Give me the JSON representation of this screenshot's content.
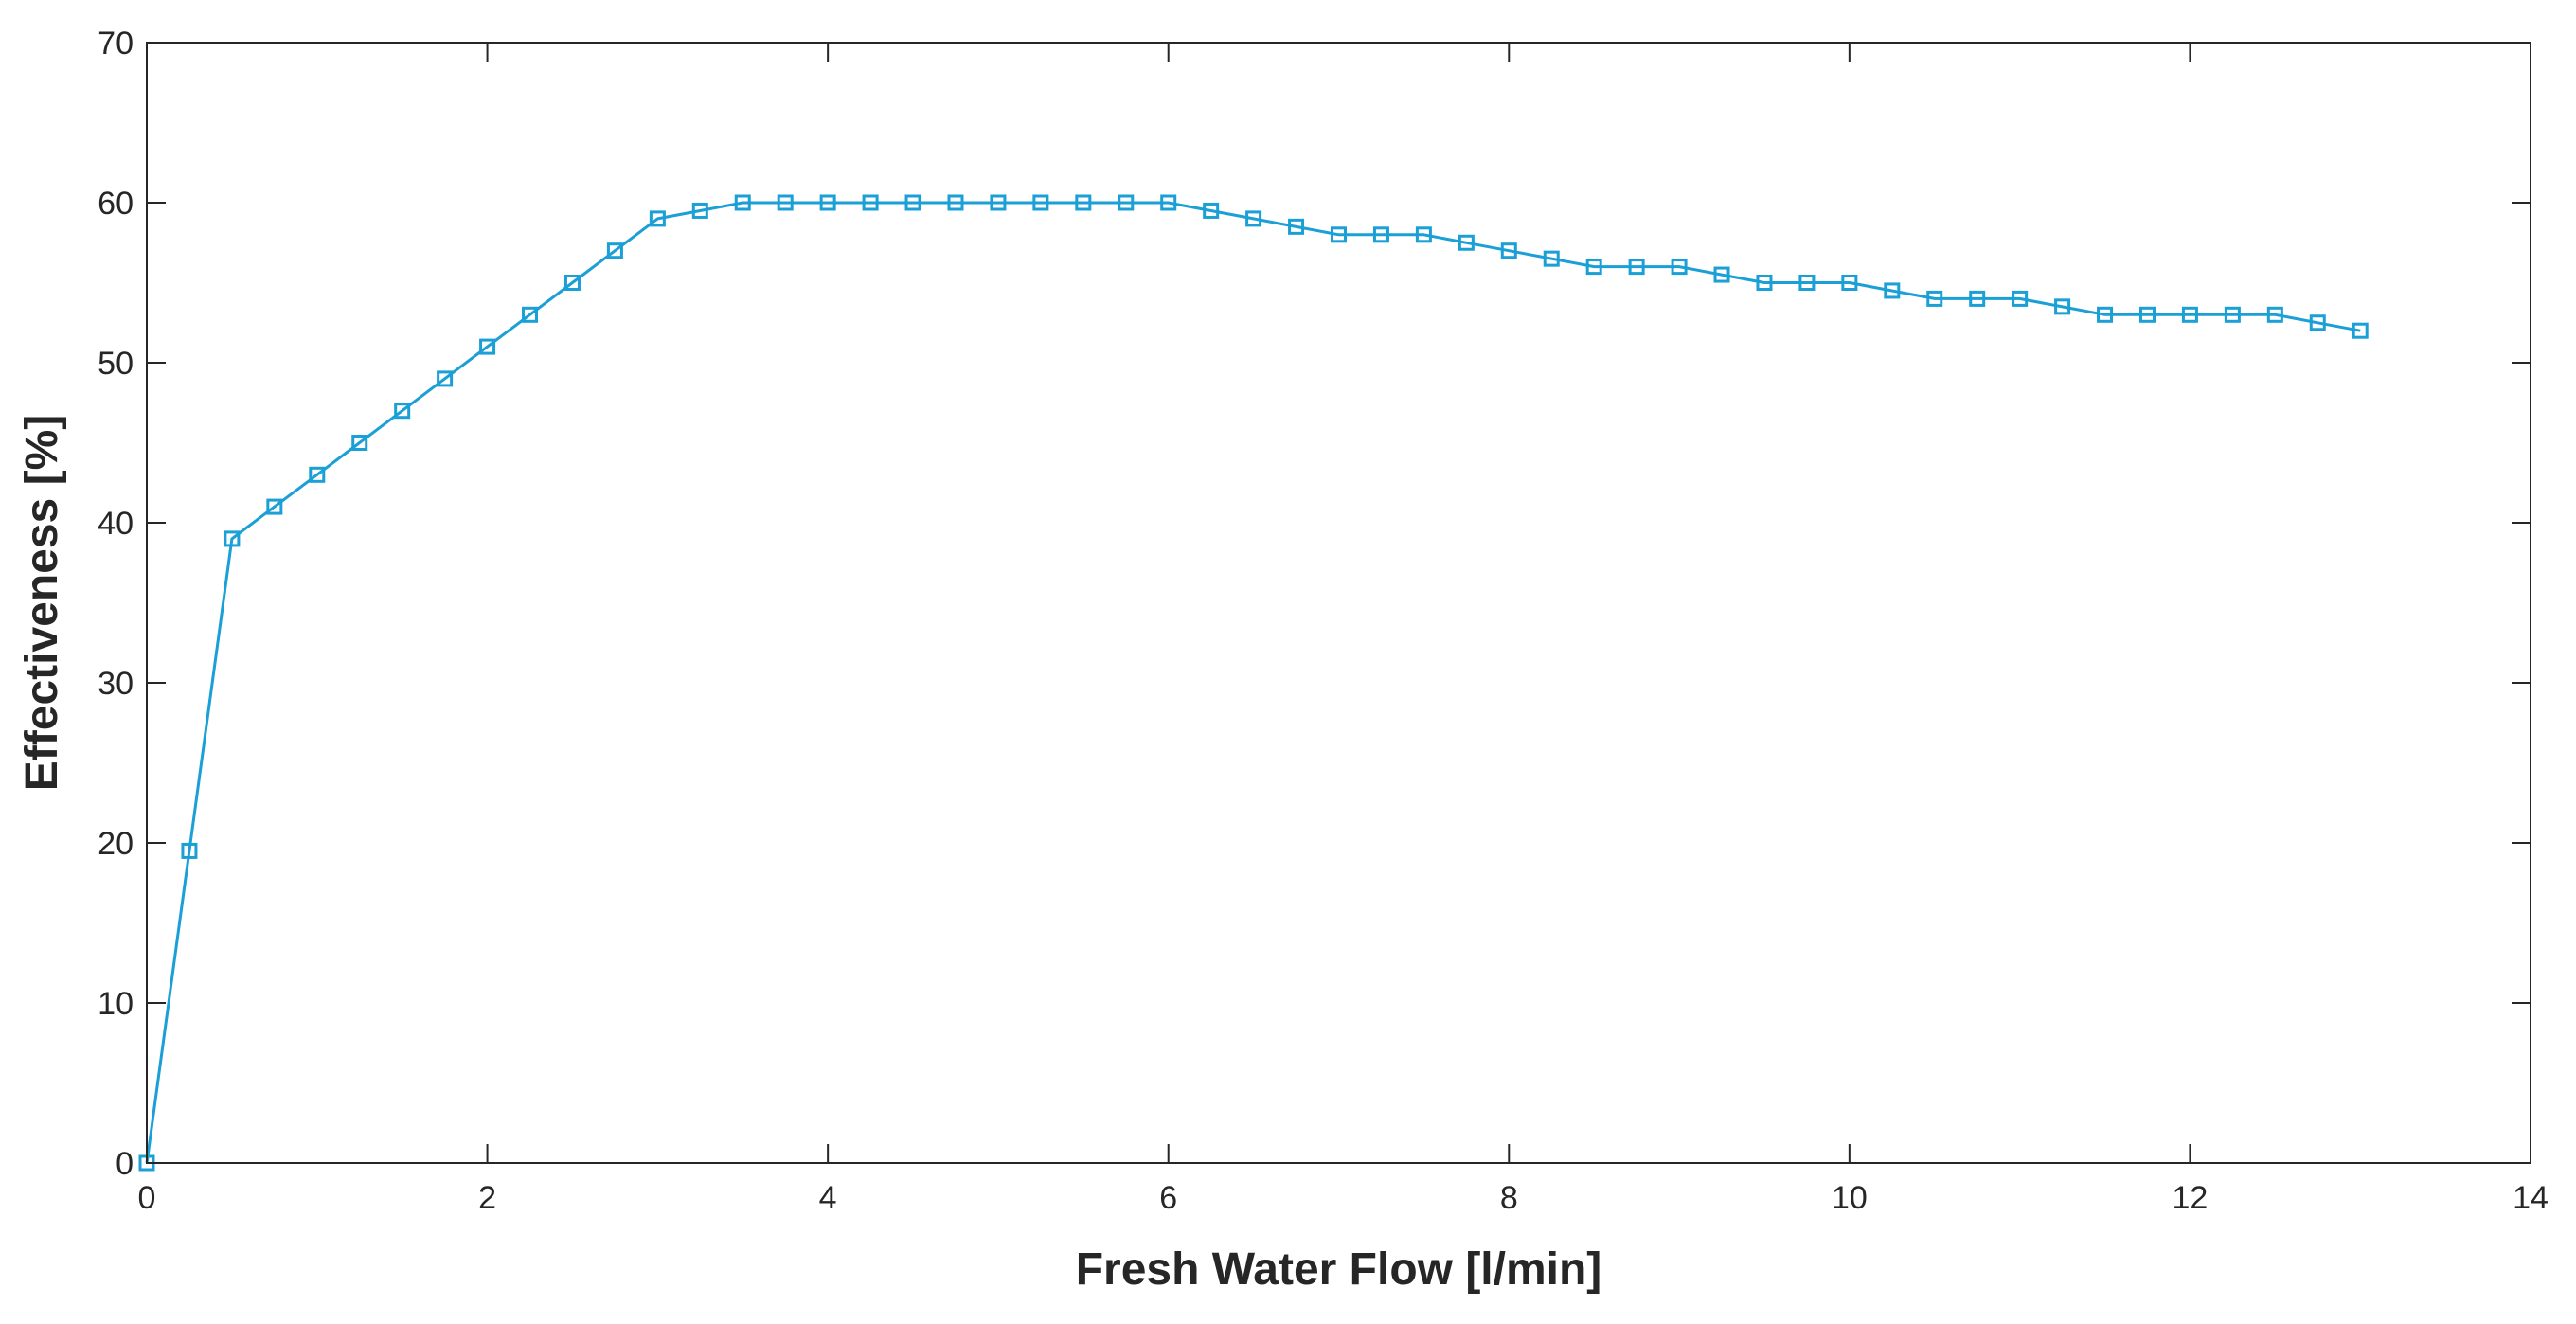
{
  "chart_data": {
    "type": "line",
    "title": "",
    "xlabel": "Fresh Water Flow [l/min]",
    "ylabel": "Effectiveness [%]",
    "xlim": [
      0,
      14
    ],
    "ylim": [
      0,
      70
    ],
    "xticks": [
      0,
      2,
      4,
      6,
      8,
      10,
      12,
      14
    ],
    "yticks": [
      0,
      10,
      20,
      30,
      40,
      50,
      60,
      70
    ],
    "grid": false,
    "box": true,
    "series": [
      {
        "name": "Effectiveness",
        "color": "#1a9fd6",
        "marker": "square",
        "x": [
          0,
          0.25,
          0.5,
          0.75,
          1,
          1.25,
          1.5,
          1.75,
          2,
          2.25,
          2.5,
          2.75,
          3,
          3.25,
          3.5,
          3.75,
          4,
          4.25,
          4.5,
          4.75,
          5,
          5.25,
          5.5,
          5.75,
          6,
          6.25,
          6.5,
          6.75,
          7,
          7.25,
          7.5,
          7.75,
          8,
          8.25,
          8.5,
          8.75,
          9,
          9.25,
          9.5,
          9.75,
          10,
          10.25,
          10.5,
          10.75,
          11,
          11.25,
          11.5,
          11.75,
          12,
          12.25,
          12.5,
          12.75,
          13
        ],
        "values": [
          0,
          19.5,
          39,
          41,
          43,
          45,
          47,
          49,
          51,
          53,
          55,
          57,
          59,
          59.5,
          60,
          60,
          60,
          60,
          60,
          60,
          60,
          60,
          60,
          60,
          60,
          59.5,
          59,
          58.5,
          58,
          58,
          58,
          57.5,
          57,
          56.5,
          56,
          56,
          56,
          55.5,
          55,
          55,
          55,
          54.5,
          54,
          54,
          54,
          53.5,
          53,
          53,
          53,
          53,
          53,
          52.5,
          52
        ]
      }
    ]
  }
}
